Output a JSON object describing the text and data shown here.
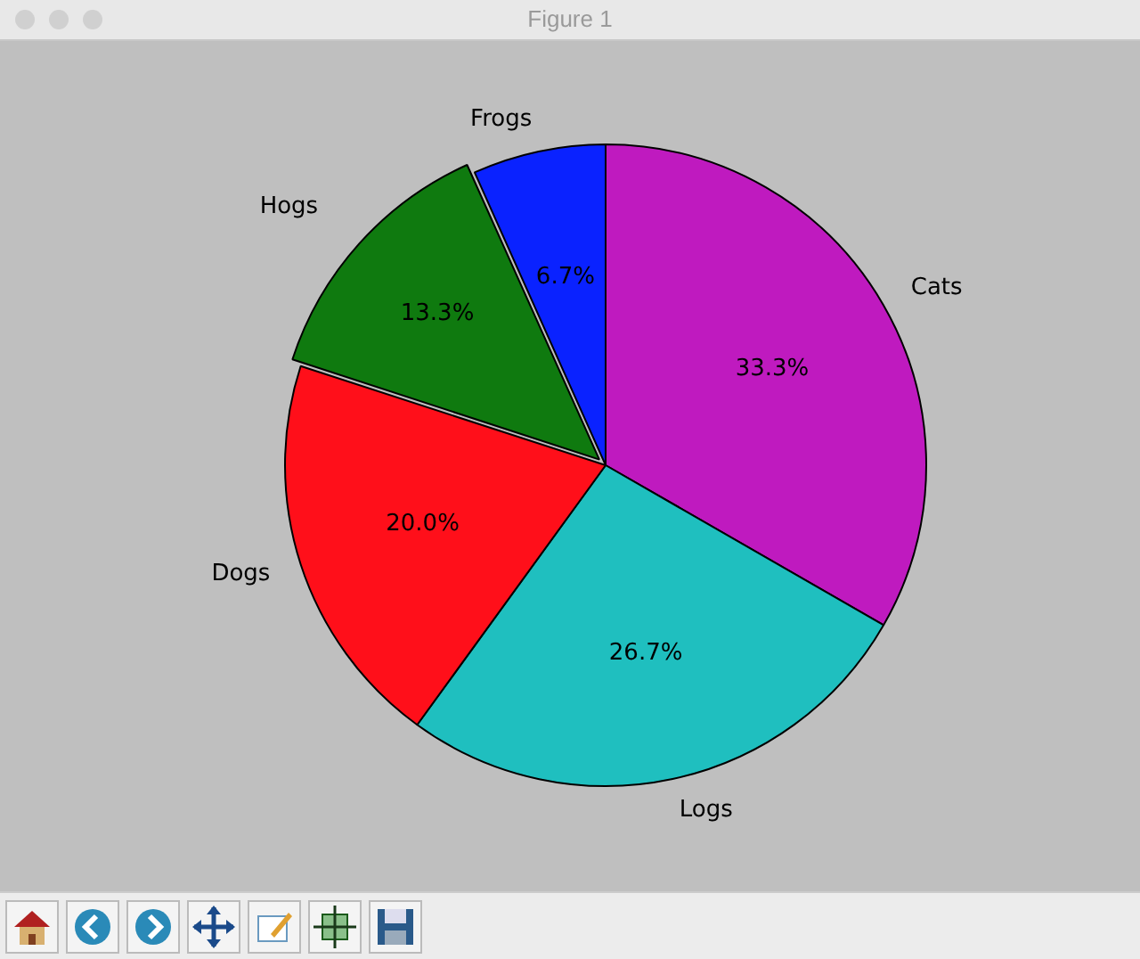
{
  "chart_data": {
    "type": "pie",
    "categories": [
      "Frogs",
      "Hogs",
      "Dogs",
      "Logs",
      "Cats"
    ],
    "values": [
      6.7,
      13.3,
      20.0,
      26.7,
      33.3
    ],
    "value_labels": [
      "6.7%",
      "13.3%",
      "20.0%",
      "26.7%",
      "33.3%"
    ],
    "colors": [
      "#0a22ff",
      "#0f7a0f",
      "#ff0f1a",
      "#1fbfbf",
      "#bf1abf"
    ],
    "legend": false,
    "annotations": [
      "Figure 1"
    ]
  }
}
